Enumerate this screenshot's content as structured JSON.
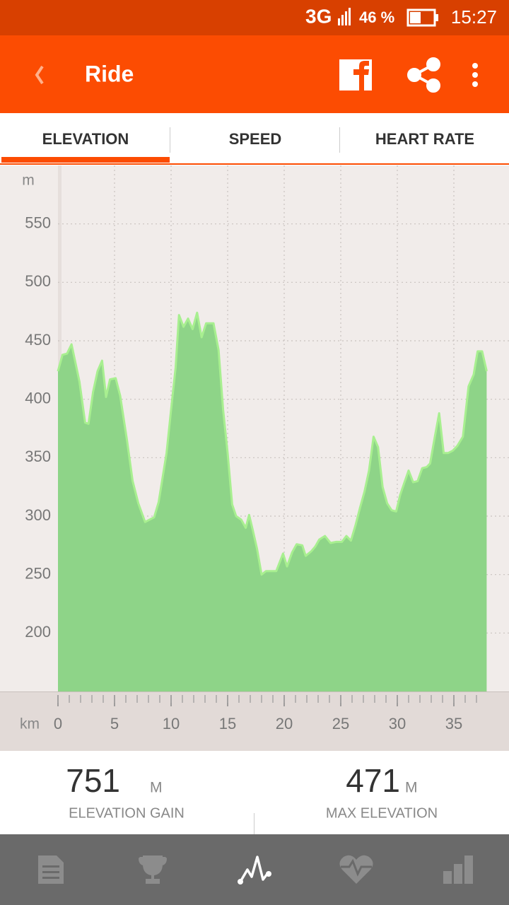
{
  "status_bar": {
    "network": "3G",
    "battery": "46 %",
    "time": "15:27"
  },
  "app_bar": {
    "title": "Ride"
  },
  "tabs": [
    "ELEVATION",
    "SPEED",
    "HEART RATE"
  ],
  "chart_data": {
    "type": "area",
    "y_unit": "m",
    "x_unit": "km",
    "color": "#8ed488",
    "line_color": "#a8ef90",
    "grid": true,
    "xlim": [
      0,
      37.9
    ],
    "ylim": [
      150,
      600
    ],
    "xticks": [
      0,
      5,
      10,
      15,
      20,
      25,
      30,
      35
    ],
    "xminorticks": [
      0,
      1,
      2,
      3,
      4,
      5,
      6,
      7,
      8,
      9,
      10,
      11,
      12,
      13,
      14,
      15,
      16,
      17,
      18,
      19,
      20,
      21,
      22,
      23,
      24,
      25,
      26,
      27,
      28,
      29,
      30,
      31,
      32,
      33,
      34,
      35,
      36,
      37
    ],
    "yticks": [
      200,
      250,
      300,
      350,
      400,
      450,
      500,
      550
    ],
    "x": [
      0,
      0.4,
      0.8,
      1.2,
      1.9,
      2.4,
      2.7,
      3.1,
      3.5,
      3.9,
      4.25,
      4.6,
      5.1,
      5.5,
      6.1,
      6.6,
      7.1,
      7.7,
      8.1,
      8.5,
      8.9,
      9.6,
      10.0,
      10.4,
      10.7,
      11.1,
      11.5,
      11.9,
      12.3,
      12.7,
      13.1,
      13.75,
      14.2,
      14.6,
      15.0,
      15.4,
      15.75,
      16.2,
      16.6,
      16.9,
      17.2,
      17.6,
      18.0,
      18.4,
      19.3,
      19.9,
      20.25,
      20.7,
      21.1,
      21.6,
      21.9,
      22.4,
      22.75,
      23.1,
      23.6,
      24.1,
      24.6,
      25.1,
      25.5,
      25.9,
      26.3,
      26.7,
      27.1,
      27.5,
      27.9,
      28.3,
      28.7,
      29.1,
      29.5,
      29.9,
      30.25,
      30.6,
      31.0,
      31.4,
      31.8,
      32.2,
      32.6,
      32.9,
      33.3,
      33.7,
      34.1,
      34.5,
      34.9,
      35.3,
      35.8,
      36.3,
      36.75,
      37.1,
      37.5,
      37.9
    ],
    "values": [
      424,
      438,
      439,
      447,
      415,
      380,
      379,
      406,
      424,
      433,
      402,
      417,
      418,
      403,
      365,
      330,
      311,
      295,
      297,
      299,
      312,
      354,
      391,
      427,
      472,
      462,
      469,
      460,
      474,
      453,
      465,
      465,
      442,
      391,
      354,
      310,
      300,
      297,
      290,
      301,
      289,
      272,
      250,
      253,
      253,
      268,
      257,
      269,
      276,
      275,
      266,
      270,
      274,
      280,
      283,
      277,
      278,
      278,
      283,
      279,
      292,
      307,
      321,
      339,
      368,
      359,
      325,
      311,
      305,
      304,
      318,
      328,
      339,
      329,
      330,
      341,
      342,
      345,
      367,
      388,
      354,
      354,
      356,
      360,
      368,
      411,
      421,
      441,
      441,
      424
    ]
  },
  "stats": [
    {
      "value": 751,
      "unit": "M",
      "label": "ELEVATION GAIN"
    },
    {
      "value": 471,
      "unit": "M",
      "label": "MAX ELEVATION"
    }
  ]
}
